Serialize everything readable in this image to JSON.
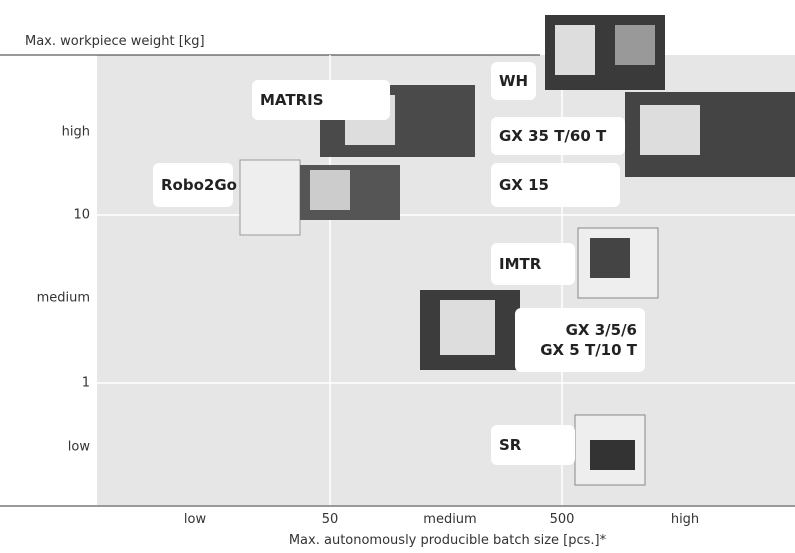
{
  "y_axis": {
    "title": "Max. workpiece weight [kg]",
    "labels": [
      "high",
      "10",
      "medium",
      "1",
      "low"
    ]
  },
  "x_axis": {
    "title": "Max. autonomously producible batch size [pcs.]*",
    "labels": [
      "low",
      "50",
      "medium",
      "500",
      "high"
    ]
  },
  "products": [
    {
      "lines": [
        "MATRIS"
      ]
    },
    {
      "lines": [
        "Robo2Go"
      ]
    },
    {
      "lines": [
        "WH"
      ]
    },
    {
      "lines": [
        "GX 35 T/60 T"
      ]
    },
    {
      "lines": [
        "GX 15"
      ]
    },
    {
      "lines": [
        "IMTR"
      ]
    },
    {
      "lines": [
        "GX 3/5/6",
        "GX 5 T/10 T"
      ]
    },
    {
      "lines": [
        "SR"
      ]
    }
  ]
}
